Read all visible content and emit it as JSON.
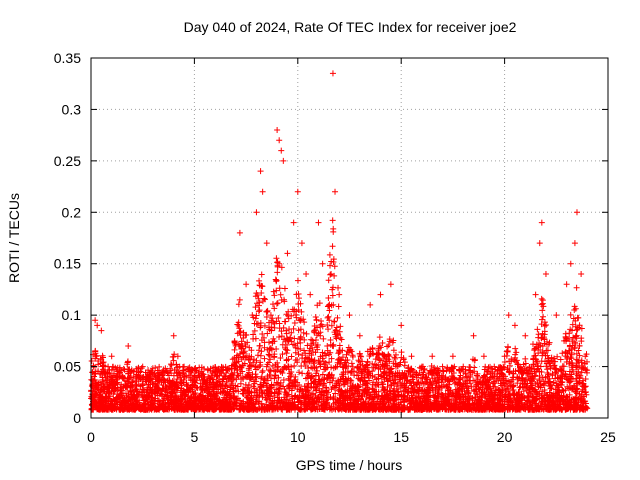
{
  "chart_data": {
    "type": "scatter",
    "title": "Day 040 of 2024, Rate Of TEC Index for receiver joe2",
    "xlabel": "GPS time / hours",
    "ylabel": "ROTI / TECUs",
    "xlim": [
      0,
      25
    ],
    "ylim": [
      0,
      0.35
    ],
    "xticks": [
      0,
      5,
      10,
      15,
      20,
      25
    ],
    "yticks": [
      0,
      0.05,
      0.1,
      0.15,
      0.2,
      0.25,
      0.3,
      0.35
    ],
    "xtick_labels": [
      "0",
      "5",
      "10",
      "15",
      "20",
      "25"
    ],
    "ytick_labels": [
      "0",
      "0.05",
      "0.1",
      "0.15",
      "0.2",
      "0.25",
      "0.3",
      "0.35"
    ],
    "grid": true,
    "marker": "+",
    "color": "#ff0000",
    "series": [
      {
        "name": "ROTI",
        "note": "Dense cloud of points (several thousand) from 0 to ~24 h; representative points listed",
        "x": [
          0.1,
          0.2,
          0.25,
          0.3,
          0.5,
          0.6,
          0.8,
          1.0,
          1.5,
          1.8,
          2.0,
          2.5,
          3.0,
          3.5,
          4.0,
          4.2,
          4.5,
          5.0,
          5.5,
          6.0,
          6.5,
          7.0,
          7.2,
          7.5,
          7.8,
          8.0,
          8.2,
          8.3,
          8.5,
          8.7,
          9.0,
          9.1,
          9.2,
          9.3,
          9.5,
          9.8,
          10.0,
          10.2,
          10.4,
          10.6,
          11.0,
          11.2,
          11.7,
          11.8,
          12.0,
          12.5,
          13.0,
          13.5,
          14.0,
          14.5,
          15.0,
          15.5,
          16.0,
          16.5,
          17.0,
          17.5,
          18.0,
          18.5,
          19.0,
          19.5,
          20.0,
          20.2,
          20.5,
          21.0,
          21.5,
          21.7,
          21.8,
          22.0,
          22.5,
          23.0,
          23.2,
          23.4,
          23.5,
          23.7,
          23.9
        ],
        "y": [
          0.03,
          0.095,
          0.06,
          0.09,
          0.085,
          0.05,
          0.04,
          0.06,
          0.04,
          0.07,
          0.035,
          0.05,
          0.04,
          0.045,
          0.08,
          0.06,
          0.05,
          0.04,
          0.035,
          0.045,
          0.04,
          0.05,
          0.18,
          0.13,
          0.1,
          0.2,
          0.24,
          0.22,
          0.17,
          0.1,
          0.28,
          0.27,
          0.26,
          0.25,
          0.16,
          0.19,
          0.22,
          0.17,
          0.14,
          0.12,
          0.19,
          0.15,
          0.335,
          0.22,
          0.12,
          0.1,
          0.08,
          0.11,
          0.12,
          0.13,
          0.09,
          0.06,
          0.05,
          0.06,
          0.05,
          0.06,
          0.05,
          0.08,
          0.06,
          0.05,
          0.06,
          0.1,
          0.09,
          0.08,
          0.12,
          0.17,
          0.19,
          0.14,
          0.1,
          0.13,
          0.15,
          0.17,
          0.2,
          0.14,
          0.06
        ]
      }
    ]
  }
}
